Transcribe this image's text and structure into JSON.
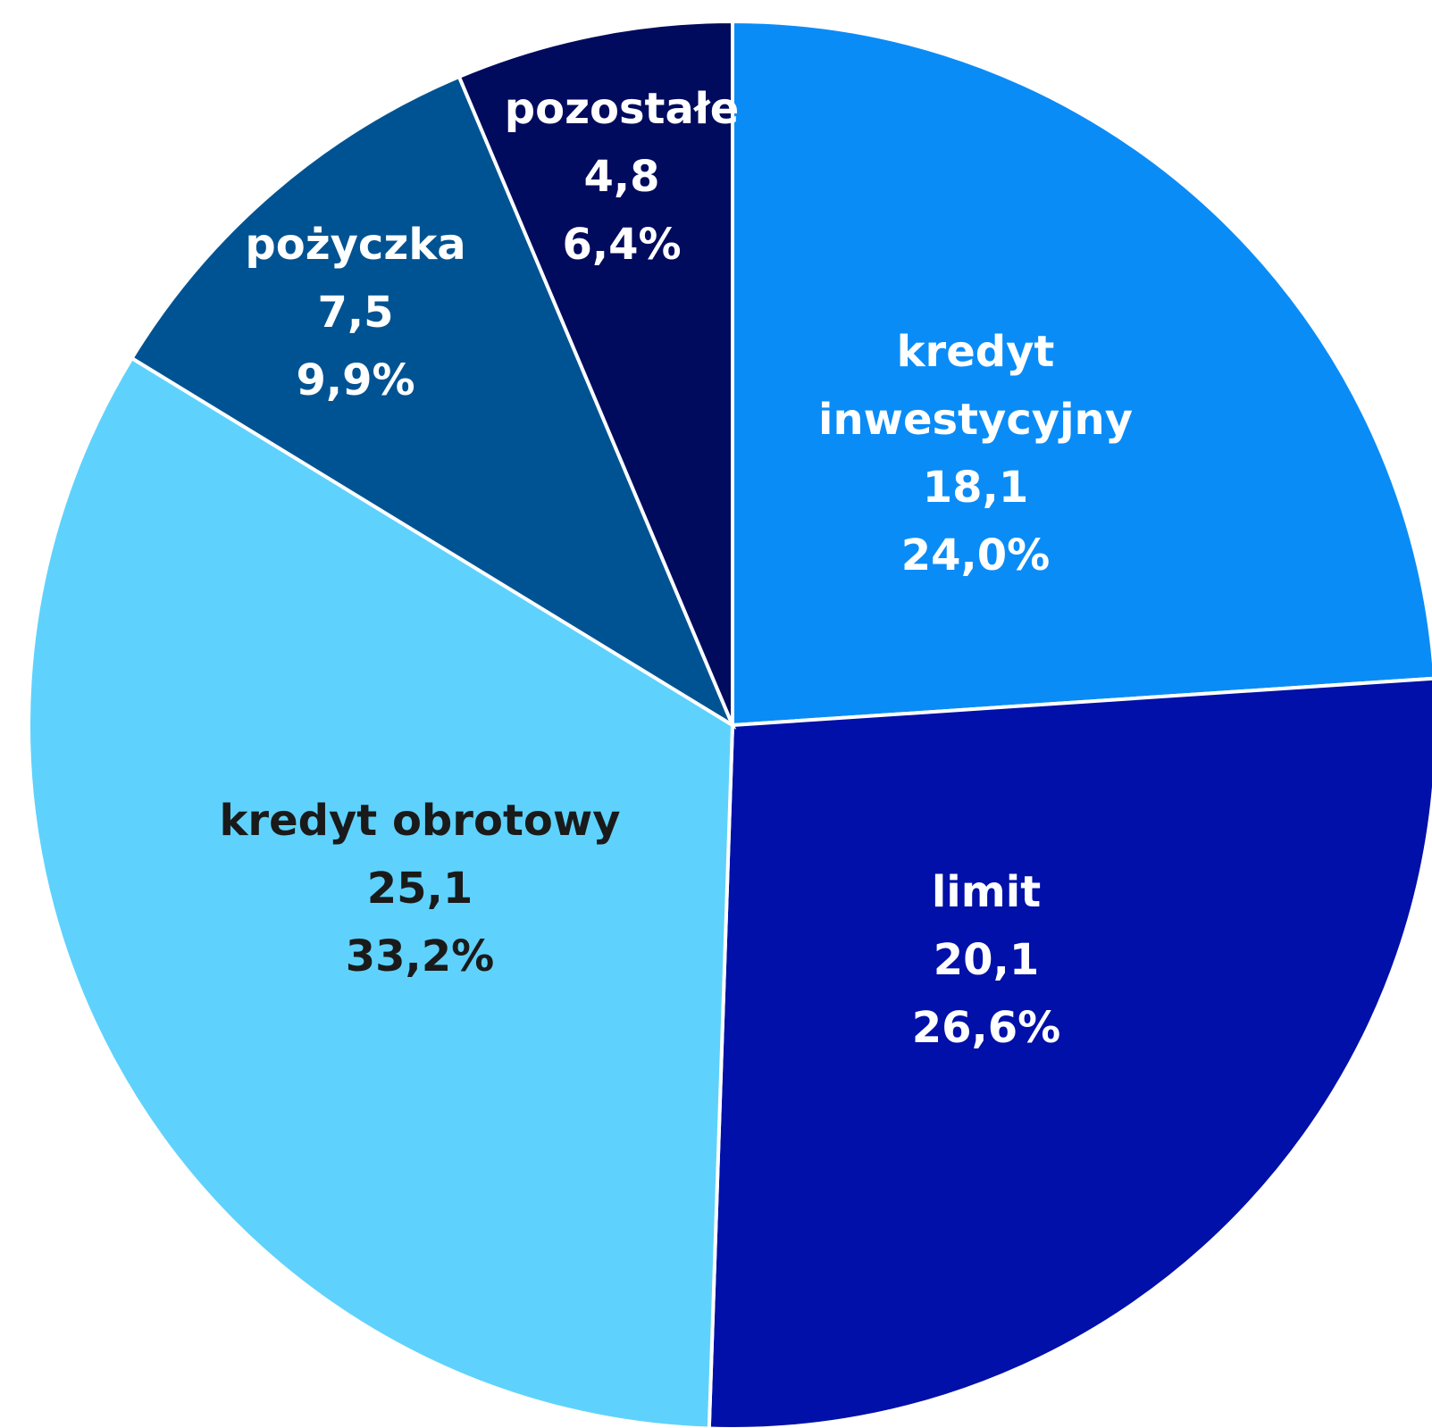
{
  "chart_data": {
    "type": "pie",
    "start_angle_deg": 0,
    "direction": "clockwise",
    "slices": [
      {
        "name": "kredyt inwestycyjny",
        "label_lines": [
          "kredyt",
          "inwestycyjny"
        ],
        "value": 18.1,
        "value_text": "18,1",
        "percent": 24.0,
        "percent_text": "24,0%",
        "color": "#0a8cf7",
        "label_color": "#ffffff"
      },
      {
        "name": "limit",
        "label_lines": [
          "limit"
        ],
        "value": 20.1,
        "value_text": "20,1",
        "percent": 26.6,
        "percent_text": "26,6%",
        "color": "#0010a8",
        "label_color": "#ffffff"
      },
      {
        "name": "kredyt obrotowy",
        "label_lines": [
          "kredyt obrotowy"
        ],
        "value": 25.1,
        "value_text": "25,1",
        "percent": 33.2,
        "percent_text": "33,2%",
        "color": "#5ed2fc",
        "label_color": "#1a1a1a"
      },
      {
        "name": "pożyczka",
        "label_lines": [
          "pożyczka"
        ],
        "value": 7.5,
        "value_text": "7,5",
        "percent": 9.9,
        "percent_text": "9,9%",
        "color": "#005393",
        "label_color": "#ffffff"
      },
      {
        "name": "pozostałe",
        "label_lines": [
          "pozostałe"
        ],
        "value": 4.8,
        "value_text": "4,8",
        "percent": 6.4,
        "percent_text": "6,4%",
        "color": "#000b5e",
        "label_color": "#ffffff"
      }
    ],
    "legend": "none"
  }
}
